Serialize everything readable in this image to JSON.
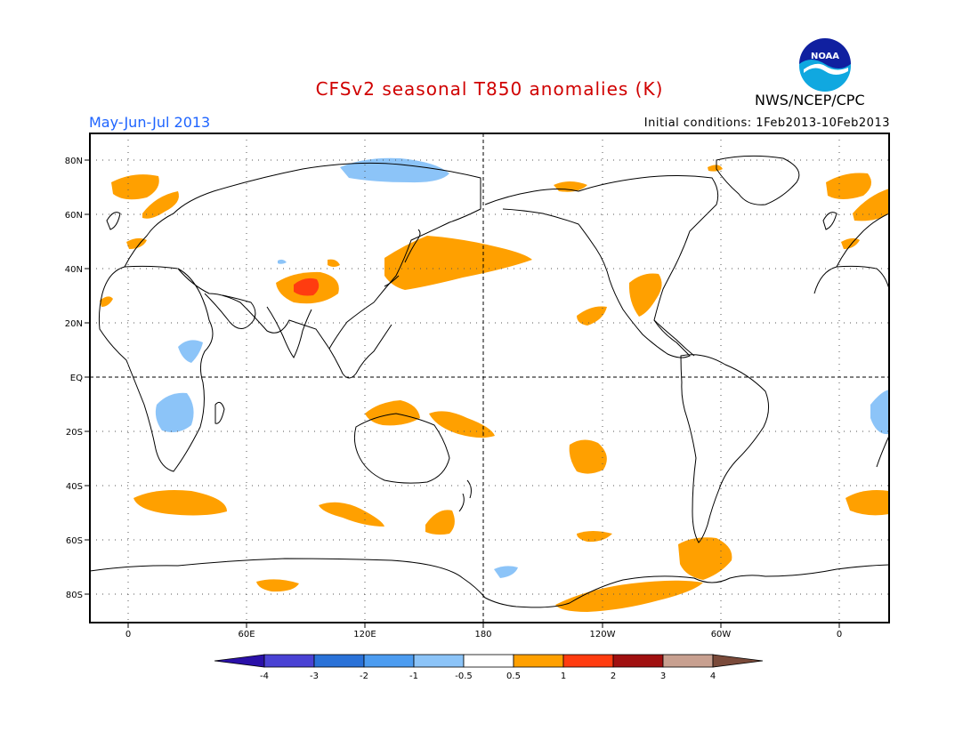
{
  "title": "CFSv2 seasonal T850 anomalies (K)",
  "season": "May-Jun-Jul 2013",
  "initial_conditions": "Initial conditions: 1Feb2013-10Feb2013",
  "agency": "NWS/NCEP/CPC",
  "logo_text": "NOAA",
  "axes": {
    "lat_labels": [
      "80N",
      "60N",
      "40N",
      "20N",
      "EQ",
      "20S",
      "40S",
      "60S",
      "80S"
    ],
    "lon_labels": [
      "0",
      "60E",
      "120E",
      "180",
      "120W",
      "60W",
      "0"
    ]
  },
  "colorbar": {
    "labels": [
      "-4",
      "-3",
      "-2",
      "-1",
      "-0.5",
      "0.5",
      "1",
      "2",
      "3",
      "4"
    ],
    "colors": [
      "#2a10a8",
      "#4a42d4",
      "#2a72d8",
      "#4c9cf0",
      "#8cc4f8",
      "#ffffff",
      "#ffa000",
      "#ff3c10",
      "#a01010",
      "#c8a090",
      "#7a4a3a"
    ]
  },
  "anomaly_colors": {
    "warm_0_5_to_1": "#ffa000",
    "warm_1_to_2": "#ff3c10",
    "cool_minus1_to_minus0_5": "#8cc4f8"
  }
}
